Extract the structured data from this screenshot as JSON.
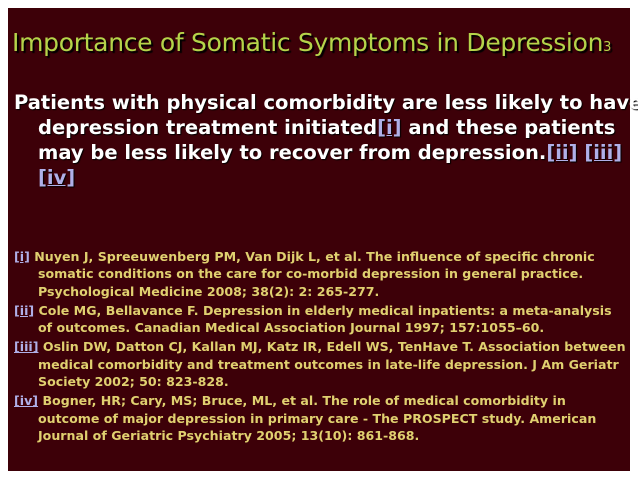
{
  "slide": {
    "title": "Importance of Somatic Symptoms in Depression",
    "title_subscript": "3",
    "body": {
      "text1": "Patients with physical comorbidity are less likely to have depression treatment initiated",
      "link1": "[i]",
      "text2": " and these patients may be less likely to recover from depression.",
      "link2": "[ii]",
      "link3": "[iii]",
      "link4": "[iv]"
    },
    "references": [
      {
        "marker": "[i]",
        "text": "Nuyen J, Spreeuwenberg PM, Van Dijk L, et al. The influence of specific chronic somatic conditions on the care for co-morbid depression in general practice. Psychological Medicine 2008; 38(2): 2: 265-277."
      },
      {
        "marker": "[ii]",
        "text": "Cole MG, Bellavance F. Depression in elderly medical inpatients: a meta-analysis of outcomes. Canadian Medical Association Journal 1997; 157:1055–60."
      },
      {
        "marker": "[iii]",
        "text": "Oslin DW, Datton CJ, Kallan MJ, Katz IR, Edell WS, TenHave T. Association between medical comorbidity and treatment outcomes in late-life depression. J Am Geriatr Society 2002; 50: 823-828."
      },
      {
        "marker": "[iv]",
        "text": "Bogner, HR; Cary, MS; Bruce, ML, et al. The role of medical comorbidity in outcome of major depression in primary care - The PROSPECT study. American Journal of Geriatric Psychiatry 2005; 13(10): 861-868."
      }
    ]
  },
  "colors": {
    "background": "#3d0008",
    "title": "#b5d44a",
    "body_text": "#ffffff",
    "reference_text": "#e0d070",
    "link": "#b0b0e8"
  }
}
